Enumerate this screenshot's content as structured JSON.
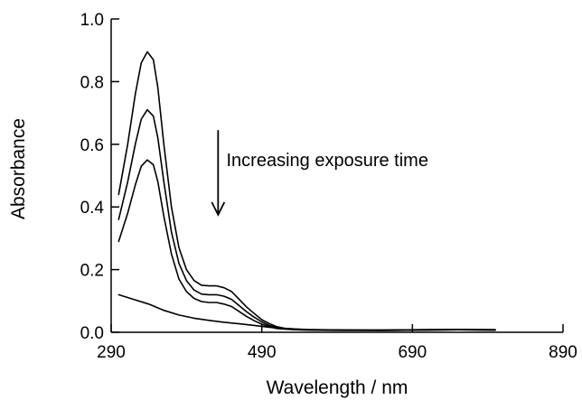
{
  "chart_data": {
    "type": "line",
    "title": "",
    "xlabel": "Wavelength / nm",
    "ylabel": "Absorbance",
    "xlim": [
      290,
      890
    ],
    "ylim": [
      0,
      1.0
    ],
    "xticks": [
      290,
      490,
      690,
      890
    ],
    "xtick_labels": [
      "290",
      "490",
      "690",
      "890"
    ],
    "yticks": [
      0,
      0.2,
      0.4,
      0.6,
      0.8,
      1.0
    ],
    "ytick_labels": [
      "0.0",
      "0.2",
      "0.4",
      "0.6",
      "0.8",
      "1.0"
    ],
    "grid": false,
    "legend": "none",
    "line_color": "#000000",
    "annotation": {
      "text": "Increasing exposure time",
      "arrow": "down",
      "arrow_from": [
        432,
        0.645
      ],
      "arrow_to": [
        432,
        0.375
      ],
      "text_at": [
        443,
        0.53
      ]
    },
    "series": [
      {
        "x": [
          300,
          312,
          322,
          330,
          338,
          346,
          352,
          360,
          370,
          380,
          390,
          400,
          410,
          420,
          430,
          440,
          450,
          460,
          470,
          480,
          490,
          500,
          510,
          520,
          535,
          550,
          600,
          650,
          700,
          750,
          800
        ],
        "y": [
          0.44,
          0.6,
          0.76,
          0.86,
          0.895,
          0.87,
          0.78,
          0.6,
          0.4,
          0.27,
          0.2,
          0.165,
          0.15,
          0.148,
          0.148,
          0.142,
          0.13,
          0.105,
          0.08,
          0.06,
          0.04,
          0.028,
          0.018,
          0.013,
          0.01,
          0.008,
          0.007,
          0.007,
          0.008,
          0.009,
          0.008
        ]
      },
      {
        "x": [
          300,
          312,
          322,
          330,
          338,
          346,
          352,
          360,
          370,
          380,
          390,
          400,
          410,
          420,
          430,
          440,
          450,
          460,
          470,
          480,
          490,
          500,
          510,
          520,
          535,
          550,
          600,
          650,
          700,
          750,
          800
        ],
        "y": [
          0.36,
          0.48,
          0.6,
          0.68,
          0.71,
          0.69,
          0.62,
          0.48,
          0.32,
          0.22,
          0.165,
          0.135,
          0.122,
          0.12,
          0.12,
          0.115,
          0.105,
          0.085,
          0.065,
          0.048,
          0.033,
          0.022,
          0.015,
          0.011,
          0.009,
          0.008,
          0.007,
          0.007,
          0.008,
          0.009,
          0.008
        ]
      },
      {
        "x": [
          300,
          312,
          322,
          330,
          338,
          346,
          352,
          360,
          370,
          380,
          390,
          400,
          410,
          420,
          430,
          440,
          450,
          460,
          470,
          480,
          490,
          500,
          510,
          520,
          535,
          550,
          600,
          650,
          700,
          750,
          800
        ],
        "y": [
          0.29,
          0.38,
          0.47,
          0.53,
          0.55,
          0.535,
          0.48,
          0.37,
          0.25,
          0.17,
          0.13,
          0.108,
          0.098,
          0.095,
          0.095,
          0.09,
          0.082,
          0.066,
          0.05,
          0.037,
          0.026,
          0.018,
          0.012,
          0.01,
          0.008,
          0.007,
          0.006,
          0.006,
          0.007,
          0.008,
          0.007
        ]
      },
      {
        "x": [
          300,
          320,
          340,
          360,
          380,
          400,
          420,
          440,
          460,
          480,
          500,
          520,
          550,
          600,
          650,
          700,
          750,
          800
        ],
        "y": [
          0.12,
          0.105,
          0.09,
          0.07,
          0.055,
          0.045,
          0.038,
          0.032,
          0.027,
          0.022,
          0.016,
          0.012,
          0.009,
          0.007,
          0.006,
          0.007,
          0.008,
          0.007
        ]
      }
    ]
  }
}
